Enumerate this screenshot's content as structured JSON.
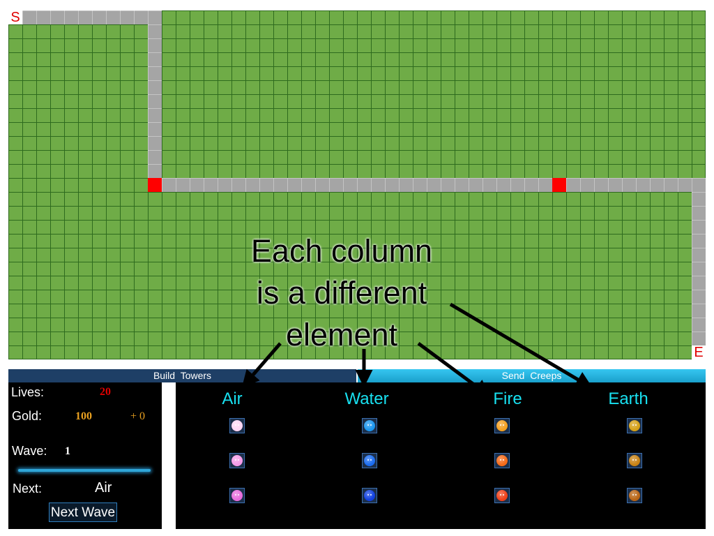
{
  "board": {
    "start_marker": "S",
    "end_marker": "E"
  },
  "tabs": {
    "build_label": "Build  Towers",
    "send_label": "Send  Creeps"
  },
  "status": {
    "lives_label": "Lives:",
    "lives_value": "20",
    "gold_label": "Gold:",
    "gold_value": "100",
    "gold_income": "+ 0",
    "wave_label": "Wave:",
    "wave_value": "1",
    "next_label": "Next:",
    "next_value": "Air",
    "next_wave_button": "Next Wave"
  },
  "towers": {
    "columns": [
      {
        "name": "Air",
        "colors": [
          "#ffd6f4",
          "#f49ae8",
          "#e86cdc"
        ]
      },
      {
        "name": "Water",
        "colors": [
          "#1a96f0",
          "#1a6cf0",
          "#1040e0"
        ]
      },
      {
        "name": "Fire",
        "colors": [
          "#f5a020",
          "#f56a18",
          "#f04018"
        ]
      },
      {
        "name": "Earth",
        "colors": [
          "#d4a016",
          "#c88214",
          "#b86414"
        ]
      }
    ]
  },
  "annotation": {
    "line1": "Each column",
    "line2": "is a different",
    "line3": "element"
  },
  "colors": {
    "grass": "#6fac47",
    "grid": "#2e6b1e",
    "path": "#a5a5a5",
    "blocker": "#ff0000",
    "column_header": "#18e0f0",
    "lives": "#e00000",
    "gold": "#e8a020"
  }
}
